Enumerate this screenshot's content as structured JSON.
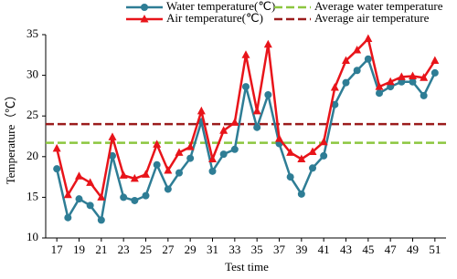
{
  "chart_data": {
    "type": "line",
    "x_label": "Test time",
    "y_label": "Temperature（℃）",
    "x": [
      17,
      18,
      19,
      20,
      21,
      22,
      23,
      24,
      25,
      26,
      27,
      28,
      29,
      30,
      31,
      32,
      33,
      34,
      35,
      36,
      37,
      38,
      39,
      40,
      41,
      42,
      43,
      44,
      45,
      46,
      47,
      48,
      49,
      50,
      51
    ],
    "series": [
      {
        "name": "Water temperature(℃)",
        "color": "#2e7d95",
        "marker": "circle",
        "values": [
          18.5,
          12.5,
          14.8,
          14.0,
          12.2,
          20.1,
          15.0,
          14.6,
          15.2,
          19.0,
          16.0,
          18.0,
          19.8,
          24.3,
          18.2,
          20.3,
          20.9,
          28.6,
          23.6,
          27.6,
          21.6,
          17.5,
          15.4,
          18.6,
          20.1,
          26.4,
          29.1,
          30.6,
          32.0,
          27.8,
          28.6,
          29.2,
          29.2,
          27.5,
          30.3
        ]
      },
      {
        "name": "Air temperature(℃)",
        "color": "#e8141a",
        "marker": "triangle",
        "values": [
          21.0,
          15.3,
          17.6,
          16.8,
          15.0,
          22.4,
          17.7,
          17.3,
          17.8,
          21.5,
          18.3,
          20.5,
          21.2,
          25.6,
          19.7,
          23.2,
          24.2,
          32.5,
          25.6,
          33.8,
          22.2,
          20.5,
          19.7,
          20.6,
          21.8,
          28.5,
          31.8,
          33.1,
          34.5,
          28.6,
          29.2,
          29.8,
          29.9,
          29.7,
          31.8
        ]
      }
    ],
    "reference_lines": [
      {
        "name": "Average water temperature",
        "color": "#8cc63f",
        "value": 21.7
      },
      {
        "name": "Average air temperature",
        "color": "#9b1c1c",
        "value": 24.0
      }
    ],
    "xlim": [
      16,
      52
    ],
    "xticks": [
      17,
      19,
      21,
      23,
      25,
      27,
      29,
      31,
      33,
      35,
      37,
      39,
      41,
      43,
      45,
      47,
      49,
      51
    ],
    "ylim": [
      10,
      35
    ],
    "yticks": [
      10,
      15,
      20,
      25,
      30,
      35
    ],
    "grid": false
  }
}
